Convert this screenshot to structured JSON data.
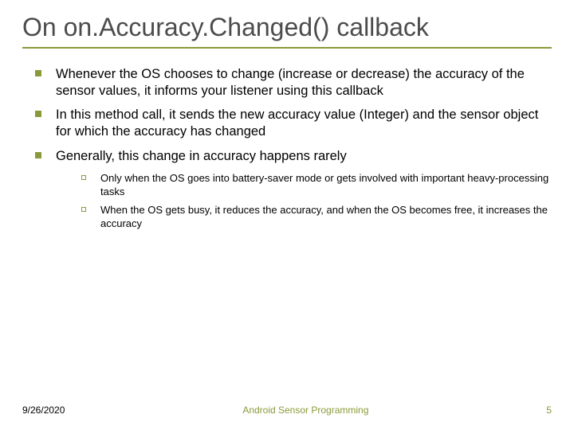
{
  "title": "On on.Accuracy.Changed() callback",
  "bullets": [
    "Whenever the OS chooses to change (increase or decrease) the accuracy of the sensor values, it informs your listener using this callback",
    "In this method call, it sends the new accuracy value (Integer) and the sensor object for which the accuracy has changed",
    "Generally, this change in accuracy happens rarely"
  ],
  "sub_bullets": [
    "Only when the OS goes into battery-saver mode or gets involved with important heavy-processing tasks",
    "When the OS gets busy, it reduces the accuracy, and when the OS becomes free, it increases the accuracy"
  ],
  "footer": {
    "date": "9/26/2020",
    "center": "Android Sensor Programming",
    "page": "5"
  },
  "colors": {
    "accent": "#8a9a3a",
    "title_text": "#4c4c4c",
    "body_text": "#000000",
    "background": "#ffffff"
  },
  "typography": {
    "title_fontsize": 32,
    "bullet_fontsize": 16.5,
    "sub_bullet_fontsize": 13,
    "footer_fontsize": 12
  }
}
